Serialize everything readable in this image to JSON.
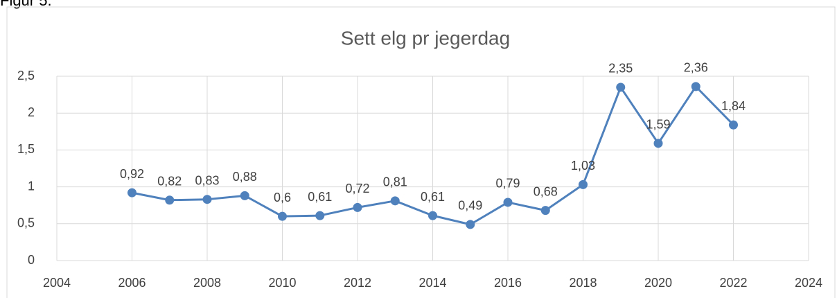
{
  "caption": "Figur 5.",
  "chart_data": {
    "type": "line",
    "title": "Sett elg pr jegerdag",
    "x": [
      2006,
      2007,
      2008,
      2009,
      2010,
      2011,
      2012,
      2013,
      2014,
      2015,
      2016,
      2017,
      2018,
      2019,
      2020,
      2021,
      2022
    ],
    "series": [
      {
        "name": "Sett elg pr jegerdag",
        "color": "#4f81bd",
        "values": [
          0.92,
          0.82,
          0.83,
          0.88,
          0.6,
          0.61,
          0.72,
          0.81,
          0.61,
          0.49,
          0.79,
          0.68,
          1.03,
          2.35,
          1.59,
          2.36,
          1.84
        ],
        "value_labels": [
          "0,92",
          "0,82",
          "0,83",
          "0,88",
          "0,6",
          "0,61",
          "0,72",
          "0,81",
          "0,61",
          "0,49",
          "0,79",
          "0,68",
          "1,03",
          "2,35",
          "1,59",
          "2,36",
          "1,84"
        ]
      }
    ],
    "xlim": [
      2004,
      2024
    ],
    "xticks": [
      2004,
      2006,
      2008,
      2010,
      2012,
      2014,
      2016,
      2018,
      2020,
      2022,
      2024
    ],
    "ylim": [
      0,
      2.5
    ],
    "yticks": [
      0,
      {
        "value": 0.5,
        "label": "0,5"
      },
      1,
      {
        "value": 1.5,
        "label": "1,5"
      },
      2,
      {
        "value": 2.5,
        "label": "2,5"
      }
    ],
    "grid": true
  }
}
